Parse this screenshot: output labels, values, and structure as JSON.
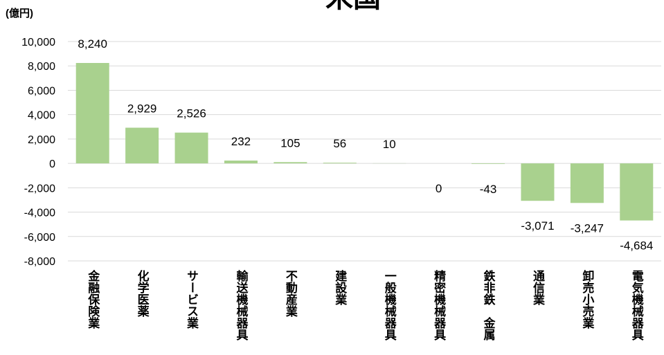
{
  "chart_data": {
    "type": "bar",
    "title": "米国",
    "y_label": "(億円)",
    "categories": [
      "金融保険業",
      "化学医薬",
      "サービス業",
      "輸送機械器具",
      "不動産業",
      "建設業",
      "一般機械器具",
      "精密機械器具",
      "鉄非鉄　金属",
      "通信業",
      "卸売小売業",
      "電気機械器具"
    ],
    "values": [
      8240,
      2929,
      2526,
      232,
      105,
      56,
      10,
      0,
      -43,
      -3071,
      -3247,
      -4684
    ],
    "value_labels": [
      "8,240",
      "2,929",
      "2,526",
      "232",
      "105",
      "56",
      "10",
      "0",
      "-43",
      "-3,071",
      "-3,247",
      "-4,684"
    ],
    "color": "#a9d18e",
    "ylim": [
      -8000,
      10000
    ],
    "yticks": [
      {
        "value": -8000,
        "label": "-8,000"
      },
      {
        "value": -6000,
        "label": "-6,000"
      },
      {
        "value": -4000,
        "label": "-4,000"
      },
      {
        "value": -2000,
        "label": "-2,000"
      },
      0,
      {
        "value": 2000,
        "label": "2,000"
      },
      {
        "value": 4000,
        "label": "4,000"
      },
      {
        "value": 6000,
        "label": "6,000"
      },
      {
        "value": 8000,
        "label": "8,000"
      },
      {
        "value": 10000,
        "label": "10,000"
      }
    ],
    "grid": true
  }
}
